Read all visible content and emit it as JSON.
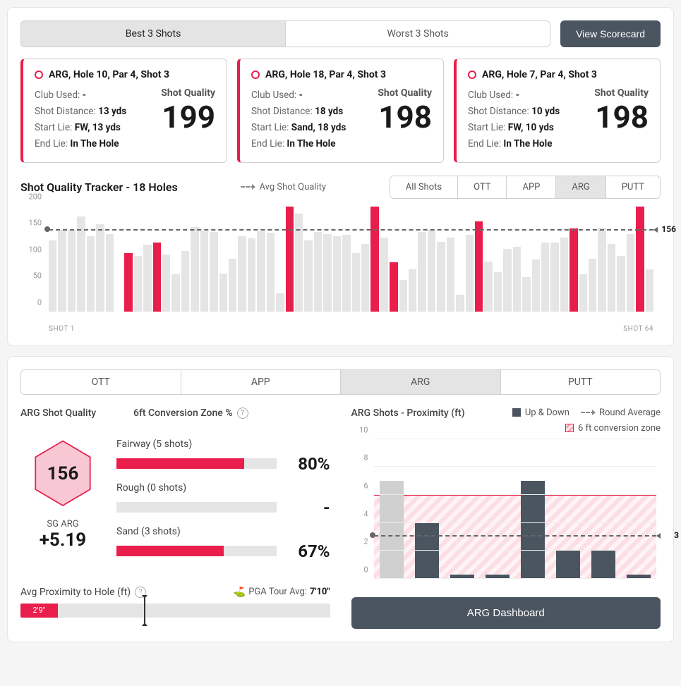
{
  "colors": {
    "accent": "#e91e4c",
    "dark": "#4a5560",
    "muted": "#e5e5e5",
    "grid": "#eeeeee",
    "text": "#1a1a1a"
  },
  "topTabs": {
    "best": "Best 3 Shots",
    "worst": "Worst 3 Shots",
    "scorecard": "View Scorecard",
    "active": "best"
  },
  "cards": [
    {
      "title": "ARG, Hole 10, Par 4, Shot 3",
      "clubLabel": "Club Used:",
      "club": "-",
      "distLabel": "Shot Distance:",
      "dist": "13 yds",
      "startLabel": "Start Lie:",
      "start": "FW, 13 yds",
      "endLabel": "End Lie:",
      "end": "In The Hole",
      "qualityLabel": "Shot Quality",
      "quality": "199"
    },
    {
      "title": "ARG, Hole 18, Par 4, Shot 3",
      "clubLabel": "Club Used:",
      "club": "-",
      "distLabel": "Shot Distance:",
      "dist": "18 yds",
      "startLabel": "Start Lie:",
      "start": "Sand, 18 yds",
      "endLabel": "End Lie:",
      "end": "In The Hole",
      "qualityLabel": "Shot Quality",
      "quality": "198"
    },
    {
      "title": "ARG, Hole 7, Par 4, Shot 3",
      "clubLabel": "Club Used:",
      "club": "-",
      "distLabel": "Shot Distance:",
      "dist": "10 yds",
      "startLabel": "Start Lie:",
      "start": "FW, 10 yds",
      "endLabel": "End Lie:",
      "end": "In The Hole",
      "qualityLabel": "Shot Quality",
      "quality": "198"
    }
  ],
  "tracker": {
    "title": "Shot Quality Tracker - 18 Holes",
    "legend": "Avg Shot Quality",
    "filters": [
      "All Shots",
      "OTT",
      "APP",
      "ARG",
      "PUTT"
    ],
    "activeFilter": "ARG",
    "ymax": 200,
    "yticks": [
      0,
      50,
      100,
      150,
      200
    ],
    "avg": 156,
    "avgLabel": "156",
    "xStart": "SHOT 1",
    "xEnd": "SHOT 64",
    "bars": [
      {
        "v": 135,
        "h": false
      },
      {
        "v": 154,
        "h": false
      },
      {
        "v": 155,
        "h": false
      },
      {
        "v": 180,
        "h": false
      },
      {
        "v": 143,
        "h": false
      },
      {
        "v": 165,
        "h": false
      },
      {
        "v": 147,
        "h": false
      },
      {
        "v": 0,
        "h": false
      },
      {
        "v": 110,
        "h": true
      },
      {
        "v": 105,
        "h": false
      },
      {
        "v": 127,
        "h": false
      },
      {
        "v": 130,
        "h": true
      },
      {
        "v": 108,
        "h": false
      },
      {
        "v": 70,
        "h": false
      },
      {
        "v": 115,
        "h": false
      },
      {
        "v": 160,
        "h": false
      },
      {
        "v": 152,
        "h": false
      },
      {
        "v": 150,
        "h": false
      },
      {
        "v": 72,
        "h": false
      },
      {
        "v": 100,
        "h": false
      },
      {
        "v": 142,
        "h": false
      },
      {
        "v": 138,
        "h": false
      },
      {
        "v": 152,
        "h": false
      },
      {
        "v": 149,
        "h": false
      },
      {
        "v": 35,
        "h": false
      },
      {
        "v": 198,
        "h": true
      },
      {
        "v": 185,
        "h": false
      },
      {
        "v": 135,
        "h": false
      },
      {
        "v": 150,
        "h": false
      },
      {
        "v": 147,
        "h": false
      },
      {
        "v": 143,
        "h": false
      },
      {
        "v": 145,
        "h": false
      },
      {
        "v": 110,
        "h": false
      },
      {
        "v": 128,
        "h": false
      },
      {
        "v": 199,
        "h": true
      },
      {
        "v": 140,
        "h": false
      },
      {
        "v": 93,
        "h": true
      },
      {
        "v": 60,
        "h": false
      },
      {
        "v": 80,
        "h": false
      },
      {
        "v": 150,
        "h": false
      },
      {
        "v": 155,
        "h": false
      },
      {
        "v": 132,
        "h": false
      },
      {
        "v": 140,
        "h": false
      },
      {
        "v": 32,
        "h": false
      },
      {
        "v": 145,
        "h": false
      },
      {
        "v": 170,
        "h": true
      },
      {
        "v": 95,
        "h": false
      },
      {
        "v": 75,
        "h": false
      },
      {
        "v": 118,
        "h": false
      },
      {
        "v": 122,
        "h": false
      },
      {
        "v": 65,
        "h": false
      },
      {
        "v": 98,
        "h": false
      },
      {
        "v": 130,
        "h": false
      },
      {
        "v": 130,
        "h": false
      },
      {
        "v": 140,
        "h": false
      },
      {
        "v": 157,
        "h": true
      },
      {
        "v": 70,
        "h": false
      },
      {
        "v": 100,
        "h": false
      },
      {
        "v": 158,
        "h": false
      },
      {
        "v": 128,
        "h": false
      },
      {
        "v": 105,
        "h": false
      },
      {
        "v": 146,
        "h": false
      },
      {
        "v": 198,
        "h": true
      },
      {
        "v": 80,
        "h": false
      }
    ]
  },
  "bottomTabs": {
    "options": [
      "OTT",
      "APP",
      "ARG",
      "PUTT"
    ],
    "active": "ARG"
  },
  "quality": {
    "title": "ARG Shot Quality",
    "hex": "156",
    "hexFill": "#f7c8d3",
    "hexStroke": "#e91e4c",
    "sgLabel": "SG ARG",
    "sgValue": "+5.19"
  },
  "conversion": {
    "title": "6ft Conversion Zone %",
    "rows": [
      {
        "label": "Fairway (5 shots)",
        "pct": "80%",
        "fill": 80
      },
      {
        "label": "Rough (0 shots)",
        "pct": "-",
        "fill": 0
      },
      {
        "label": "Sand (3 shots)",
        "pct": "67%",
        "fill": 67
      }
    ]
  },
  "proximity": {
    "label": "Avg Proximity to Hole (ft)",
    "pgaIcon": "⛳",
    "pgaLabel": "PGA Tour Avg:",
    "pgaValue": "7'10\"",
    "fillText": "2'9\"",
    "fillPct": 12,
    "markerPct": 40
  },
  "proxChart": {
    "title": "ARG Shots - Proximity (ft)",
    "legend": {
      "upDown": "Up & Down",
      "roundAvg": "Round Average",
      "convZone": "6 ft conversion zone"
    },
    "ymax": 10,
    "yticks": [
      0,
      2,
      4,
      6,
      8,
      10
    ],
    "convZoneTop": 6,
    "avg": 3,
    "avgLabel": "3",
    "bars": [
      {
        "v": 7,
        "ud": false
      },
      {
        "v": 4,
        "ud": true
      },
      {
        "v": 0.3,
        "ud": true
      },
      {
        "v": 0.3,
        "ud": true
      },
      {
        "v": 7,
        "ud": true
      },
      {
        "v": 2,
        "ud": true
      },
      {
        "v": 2,
        "ud": true
      },
      {
        "v": 0.3,
        "ud": true
      }
    ],
    "button": "ARG Dashboard"
  }
}
